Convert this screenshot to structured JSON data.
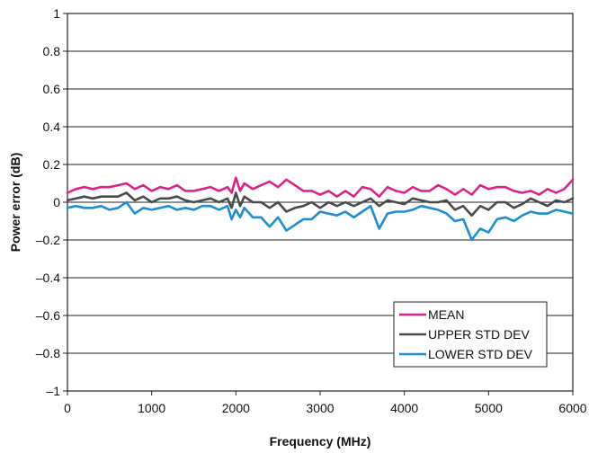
{
  "chart_data": {
    "type": "line",
    "title": "",
    "xlabel": "Frequency (MHz)",
    "ylabel": "Power error (dB)",
    "xlim": [
      0,
      6000
    ],
    "ylim": [
      -1,
      1
    ],
    "x_ticks": [
      0,
      1000,
      2000,
      3000,
      4000,
      5000,
      6000
    ],
    "x_tick_labels": [
      "0",
      "1000",
      "2000",
      "3000",
      "4000",
      "5000",
      "6000"
    ],
    "y_ticks": [
      1,
      0.8,
      0.6,
      0.4,
      0.2,
      0,
      -0.2,
      -0.4,
      -0.6,
      -0.8,
      -1
    ],
    "y_tick_labels": [
      "1",
      "0.8",
      "0.6",
      "0.4",
      "0.2",
      "0",
      "–0.2",
      "–0.4",
      "–0.6",
      "–0.8",
      "–1"
    ],
    "grid": "horizontal",
    "legend_position": "bottom-right",
    "series": [
      {
        "name": "MEAN",
        "color": "#e0218a",
        "x": [
          0,
          100,
          200,
          300,
          400,
          500,
          600,
          700,
          800,
          900,
          1000,
          1100,
          1200,
          1300,
          1400,
          1500,
          1600,
          1700,
          1800,
          1900,
          1950,
          2000,
          2050,
          2100,
          2200,
          2300,
          2400,
          2500,
          2600,
          2700,
          2800,
          2900,
          3000,
          3100,
          3200,
          3300,
          3400,
          3500,
          3600,
          3700,
          3800,
          3900,
          4000,
          4100,
          4200,
          4300,
          4400,
          4500,
          4600,
          4700,
          4800,
          4900,
          5000,
          5100,
          5200,
          5300,
          5400,
          5500,
          5600,
          5700,
          5800,
          5900,
          6000
        ],
        "y": [
          0.05,
          0.07,
          0.08,
          0.07,
          0.08,
          0.08,
          0.09,
          0.1,
          0.07,
          0.09,
          0.06,
          0.08,
          0.07,
          0.09,
          0.06,
          0.06,
          0.07,
          0.08,
          0.06,
          0.08,
          0.05,
          0.13,
          0.06,
          0.1,
          0.07,
          0.09,
          0.11,
          0.08,
          0.12,
          0.09,
          0.06,
          0.06,
          0.04,
          0.06,
          0.03,
          0.06,
          0.03,
          0.08,
          0.07,
          0.03,
          0.08,
          0.06,
          0.05,
          0.08,
          0.06,
          0.06,
          0.09,
          0.07,
          0.04,
          0.07,
          0.04,
          0.09,
          0.07,
          0.08,
          0.08,
          0.06,
          0.05,
          0.06,
          0.04,
          0.07,
          0.05,
          0.07,
          0.12
        ]
      },
      {
        "name": "UPPER STD DEV",
        "color": "#4a4a4a",
        "x": [
          0,
          100,
          200,
          300,
          400,
          500,
          600,
          700,
          800,
          900,
          1000,
          1100,
          1200,
          1300,
          1400,
          1500,
          1600,
          1700,
          1800,
          1900,
          1950,
          2000,
          2050,
          2100,
          2200,
          2300,
          2400,
          2500,
          2600,
          2700,
          2800,
          2900,
          3000,
          3100,
          3200,
          3300,
          3400,
          3500,
          3600,
          3700,
          3800,
          3900,
          4000,
          4100,
          4200,
          4300,
          4400,
          4500,
          4600,
          4700,
          4800,
          4900,
          5000,
          5100,
          5200,
          5300,
          5400,
          5500,
          5600,
          5700,
          5800,
          5900,
          6000
        ],
        "y": [
          0.01,
          0.02,
          0.03,
          0.02,
          0.03,
          0.03,
          0.03,
          0.05,
          0.01,
          0.03,
          0.0,
          0.02,
          0.02,
          0.03,
          0.01,
          0.0,
          0.01,
          0.02,
          0.0,
          0.02,
          -0.03,
          0.05,
          -0.02,
          0.03,
          0.0,
          0.0,
          -0.03,
          0.0,
          -0.05,
          -0.03,
          -0.02,
          0.0,
          -0.03,
          0.0,
          -0.02,
          0.0,
          -0.02,
          0.0,
          0.02,
          -0.02,
          0.01,
          0.0,
          -0.01,
          0.02,
          0.01,
          0.0,
          0.0,
          0.01,
          -0.04,
          -0.02,
          -0.07,
          -0.02,
          -0.04,
          0.0,
          0.0,
          -0.03,
          -0.01,
          0.02,
          0.0,
          -0.02,
          0.01,
          0.0,
          0.02
        ]
      },
      {
        "name": "LOWER STD DEV",
        "color": "#1e8ed2",
        "x": [
          0,
          100,
          200,
          300,
          400,
          500,
          600,
          700,
          800,
          900,
          1000,
          1100,
          1200,
          1300,
          1400,
          1500,
          1600,
          1700,
          1800,
          1900,
          1950,
          2000,
          2050,
          2100,
          2200,
          2300,
          2400,
          2500,
          2600,
          2700,
          2800,
          2900,
          3000,
          3100,
          3200,
          3300,
          3400,
          3500,
          3600,
          3700,
          3800,
          3900,
          4000,
          4100,
          4200,
          4300,
          4400,
          4500,
          4600,
          4700,
          4800,
          4900,
          5000,
          5100,
          5200,
          5300,
          5400,
          5500,
          5600,
          5700,
          5800,
          5900,
          6000
        ],
        "y": [
          -0.03,
          -0.02,
          -0.03,
          -0.03,
          -0.02,
          -0.04,
          -0.03,
          0.0,
          -0.06,
          -0.03,
          -0.04,
          -0.03,
          -0.02,
          -0.04,
          -0.03,
          -0.04,
          -0.02,
          -0.02,
          -0.04,
          -0.02,
          -0.09,
          -0.04,
          -0.08,
          -0.03,
          -0.08,
          -0.08,
          -0.13,
          -0.08,
          -0.15,
          -0.12,
          -0.09,
          -0.09,
          -0.05,
          -0.06,
          -0.07,
          -0.05,
          -0.08,
          -0.05,
          -0.02,
          -0.14,
          -0.06,
          -0.05,
          -0.05,
          -0.04,
          -0.02,
          -0.03,
          -0.04,
          -0.06,
          -0.1,
          -0.09,
          -0.2,
          -0.14,
          -0.16,
          -0.09,
          -0.08,
          -0.1,
          -0.07,
          -0.05,
          -0.06,
          -0.06,
          -0.04,
          -0.05,
          -0.06
        ]
      }
    ]
  }
}
